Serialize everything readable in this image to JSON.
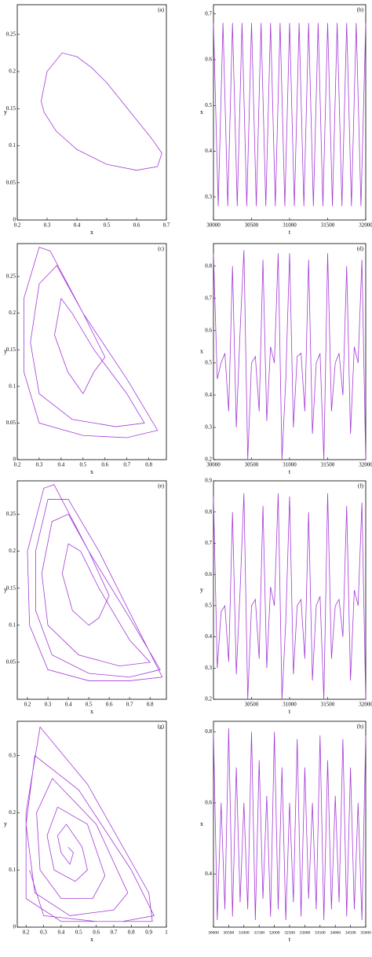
{
  "chart_data": [
    {
      "type": "line",
      "panel": "(a)",
      "xlabel": "x",
      "ylabel": "y",
      "xlim": [
        0.2,
        0.7
      ],
      "xticks": [
        0.2,
        0.3,
        0.4,
        0.5,
        0.6,
        0.7
      ],
      "ylim": [
        0,
        0.29
      ],
      "yticks": [
        0,
        0.05,
        0.1,
        0.15,
        0.2,
        0.25
      ],
      "x": [
        0.28,
        0.3,
        0.35,
        0.4,
        0.45,
        0.5,
        0.55,
        0.6,
        0.65,
        0.685,
        0.67,
        0.6,
        0.5,
        0.4,
        0.33,
        0.29,
        0.28
      ],
      "series": [
        {
          "color": "#a43ad6",
          "values": [
            0.16,
            0.2,
            0.225,
            0.22,
            0.205,
            0.185,
            0.16,
            0.135,
            0.11,
            0.09,
            0.072,
            0.067,
            0.075,
            0.095,
            0.12,
            0.145,
            0.16
          ]
        }
      ]
    },
    {
      "type": "line",
      "panel": "(b)",
      "xlabel": "t",
      "ylabel": "x",
      "xlim": [
        30000,
        32000
      ],
      "xticks": [
        30000,
        30500,
        31000,
        31500,
        32000
      ],
      "ylim": [
        0.25,
        0.72
      ],
      "yticks": [
        0.3,
        0.4,
        0.5,
        0.6,
        0.7
      ],
      "x": [
        30000,
        30062.5,
        30125,
        30187.5,
        30250,
        30312.5,
        30375,
        30437.5,
        30500,
        30562.5,
        30625,
        30687.5,
        30750,
        30812.5,
        30875,
        30937.5,
        31000,
        31062.5,
        31125,
        31187.5,
        31250,
        31312.5,
        31375,
        31437.5,
        31500,
        31562.5,
        31625,
        31687.5,
        31750,
        31812.5,
        31875,
        31937.5,
        32000
      ],
      "series": [
        {
          "color": "#a43ad6",
          "values": [
            0.68,
            0.28,
            0.68,
            0.28,
            0.68,
            0.28,
            0.68,
            0.28,
            0.68,
            0.28,
            0.68,
            0.28,
            0.68,
            0.28,
            0.68,
            0.28,
            0.68,
            0.28,
            0.68,
            0.28,
            0.68,
            0.28,
            0.68,
            0.28,
            0.68,
            0.28,
            0.68,
            0.28,
            0.68,
            0.28,
            0.68,
            0.28,
            0.68
          ]
        }
      ]
    },
    {
      "type": "line",
      "panel": "(c)",
      "xlabel": "x",
      "ylabel": "y",
      "xlim": [
        0.2,
        0.88
      ],
      "xticks": [
        0.2,
        0.3,
        0.4,
        0.5,
        0.6,
        0.7,
        0.8
      ],
      "ylim": [
        0,
        0.295
      ],
      "yticks": [
        0,
        0.05,
        0.1,
        0.15,
        0.2,
        0.25
      ],
      "x": [
        0.5,
        0.43,
        0.37,
        0.4,
        0.45,
        0.55,
        0.7,
        0.78,
        0.65,
        0.45,
        0.3,
        0.26,
        0.3,
        0.38,
        0.5,
        0.7,
        0.84,
        0.7,
        0.5,
        0.3,
        0.23,
        0.23,
        0.3,
        0.35,
        0.5,
        0.6,
        0.55,
        0.5
      ],
      "series": [
        {
          "color": "#a43ad6",
          "values": [
            0.09,
            0.12,
            0.17,
            0.22,
            0.2,
            0.15,
            0.09,
            0.05,
            0.045,
            0.055,
            0.09,
            0.16,
            0.24,
            0.265,
            0.2,
            0.11,
            0.04,
            0.03,
            0.033,
            0.05,
            0.12,
            0.22,
            0.29,
            0.285,
            0.2,
            0.14,
            0.12,
            0.09
          ]
        }
      ]
    },
    {
      "type": "line",
      "panel": "(d)",
      "xlabel": "t",
      "ylabel": "x",
      "xlim": [
        30000,
        32000
      ],
      "xticks": [
        30000,
        30500,
        31000,
        31500,
        32000
      ],
      "ylim": [
        0.2,
        0.87
      ],
      "yticks": [
        0.2,
        0.3,
        0.4,
        0.5,
        0.6,
        0.7,
        0.8
      ],
      "x": [
        30000,
        30050,
        30100,
        30150,
        30200,
        30250,
        30300,
        30350,
        30400,
        30450,
        30500,
        30550,
        30600,
        30650,
        30700,
        30750,
        30800,
        30850,
        30900,
        30950,
        31000,
        31050,
        31100,
        31150,
        31200,
        31250,
        31300,
        31350,
        31400,
        31450,
        31500,
        31550,
        31600,
        31650,
        31700,
        31750,
        31800,
        31850,
        31900,
        31950,
        32000
      ],
      "series": [
        {
          "color": "#a43ad6",
          "values": [
            0.84,
            0.45,
            0.5,
            0.53,
            0.35,
            0.8,
            0.3,
            0.6,
            0.85,
            0.2,
            0.5,
            0.52,
            0.35,
            0.82,
            0.32,
            0.55,
            0.5,
            0.84,
            0.2,
            0.45,
            0.84,
            0.3,
            0.52,
            0.53,
            0.35,
            0.82,
            0.28,
            0.5,
            0.53,
            0.2,
            0.84,
            0.35,
            0.5,
            0.53,
            0.4,
            0.8,
            0.28,
            0.55,
            0.5,
            0.82,
            0.2
          ]
        }
      ]
    },
    {
      "type": "line",
      "panel": "(e)",
      "xlabel": "x",
      "ylabel": "y",
      "xlim": [
        0.15,
        0.88
      ],
      "xticks": [
        0.2,
        0.3,
        0.4,
        0.5,
        0.6,
        0.7,
        0.8
      ],
      "ylim": [
        0,
        0.295
      ],
      "yticks": [
        0.05,
        0.1,
        0.15,
        0.2,
        0.25
      ],
      "x": [
        0.5,
        0.42,
        0.37,
        0.4,
        0.46,
        0.55,
        0.7,
        0.8,
        0.65,
        0.45,
        0.3,
        0.27,
        0.32,
        0.4,
        0.5,
        0.7,
        0.85,
        0.7,
        0.5,
        0.32,
        0.24,
        0.24,
        0.3,
        0.4,
        0.55,
        0.75,
        0.86,
        0.7,
        0.5,
        0.3,
        0.21,
        0.2,
        0.28,
        0.33,
        0.5,
        0.6,
        0.55,
        0.5
      ],
      "series": [
        {
          "color": "#a43ad6",
          "values": [
            0.1,
            0.12,
            0.17,
            0.21,
            0.2,
            0.15,
            0.08,
            0.05,
            0.045,
            0.06,
            0.1,
            0.17,
            0.24,
            0.25,
            0.2,
            0.11,
            0.04,
            0.03,
            0.035,
            0.06,
            0.12,
            0.2,
            0.27,
            0.27,
            0.2,
            0.09,
            0.03,
            0.025,
            0.025,
            0.04,
            0.1,
            0.2,
            0.285,
            0.29,
            0.2,
            0.14,
            0.11,
            0.1
          ]
        }
      ]
    },
    {
      "type": "line",
      "panel": "(f)",
      "xlabel": "t",
      "ylabel": "y",
      "xlim": [
        30000,
        32000
      ],
      "xticks": [
        30500,
        31000,
        31500,
        32000
      ],
      "ylim": [
        0.2,
        0.9
      ],
      "yticks": [
        0.2,
        0.3,
        0.4,
        0.5,
        0.6,
        0.7,
        0.8,
        0.9
      ],
      "x": [
        30000,
        30050,
        30100,
        30150,
        30200,
        30250,
        30300,
        30350,
        30400,
        30450,
        30500,
        30550,
        30600,
        30650,
        30700,
        30750,
        30800,
        30850,
        30900,
        30950,
        31000,
        31050,
        31100,
        31150,
        31200,
        31250,
        31300,
        31350,
        31400,
        31450,
        31500,
        31550,
        31600,
        31650,
        31700,
        31750,
        31800,
        31850,
        31900,
        31950,
        32000
      ],
      "series": [
        {
          "color": "#a43ad6",
          "values": [
            0.85,
            0.3,
            0.48,
            0.5,
            0.32,
            0.8,
            0.28,
            0.55,
            0.86,
            0.2,
            0.5,
            0.52,
            0.33,
            0.82,
            0.3,
            0.56,
            0.5,
            0.86,
            0.2,
            0.45,
            0.85,
            0.28,
            0.5,
            0.52,
            0.33,
            0.8,
            0.26,
            0.5,
            0.53,
            0.2,
            0.86,
            0.33,
            0.5,
            0.52,
            0.4,
            0.82,
            0.26,
            0.55,
            0.5,
            0.83,
            0.2
          ]
        }
      ]
    },
    {
      "type": "line",
      "panel": "(g)",
      "xlabel": "x",
      "ylabel": "y",
      "xlim": [
        0.15,
        1
      ],
      "xticks": [
        0.2,
        0.3,
        0.4,
        0.5,
        0.6,
        0.7,
        0.8,
        0.9,
        1
      ],
      "ylim": [
        0,
        0.36
      ],
      "yticks": [
        0,
        0.1,
        0.2,
        0.3
      ],
      "x": [
        0.44,
        0.47,
        0.45,
        0.4,
        0.38,
        0.43,
        0.52,
        0.55,
        0.48,
        0.36,
        0.32,
        0.38,
        0.55,
        0.65,
        0.58,
        0.4,
        0.28,
        0.26,
        0.35,
        0.6,
        0.78,
        0.7,
        0.45,
        0.25,
        0.2,
        0.25,
        0.5,
        0.8,
        0.93,
        0.75,
        0.4,
        0.2,
        0.2,
        0.28,
        0.55,
        0.9,
        0.92,
        0.6,
        0.3,
        0.22
      ],
      "series": [
        {
          "color": "#a43ad6",
          "values": [
            0.14,
            0.13,
            0.11,
            0.13,
            0.16,
            0.18,
            0.14,
            0.1,
            0.08,
            0.1,
            0.16,
            0.21,
            0.18,
            0.09,
            0.05,
            0.05,
            0.1,
            0.2,
            0.26,
            0.18,
            0.06,
            0.03,
            0.02,
            0.06,
            0.18,
            0.3,
            0.24,
            0.1,
            0.02,
            0.01,
            0.01,
            0.05,
            0.2,
            0.35,
            0.25,
            0.06,
            0.01,
            0.01,
            0.02,
            0.1
          ]
        }
      ]
    },
    {
      "type": "line",
      "panel": "(h)",
      "xlabel": "t",
      "ylabel": "x",
      "xlim": [
        30000,
        35000
      ],
      "xticks": [
        30000,
        30500,
        31000,
        31500,
        32000,
        32500,
        33000,
        33500,
        34000,
        34500,
        35000
      ],
      "ylim": [
        0.25,
        0.83
      ],
      "yticks": [
        0.4,
        0.6,
        0.8
      ],
      "x": [
        30000,
        30125,
        30250,
        30375,
        30500,
        30625,
        30750,
        30875,
        31000,
        31125,
        31250,
        31375,
        31500,
        31625,
        31750,
        31875,
        32000,
        32125,
        32250,
        32375,
        32500,
        32625,
        32750,
        32875,
        33000,
        33125,
        33250,
        33375,
        33500,
        33625,
        33750,
        33875,
        34000,
        34125,
        34250,
        34375,
        34500,
        34625,
        34750,
        34875,
        35000
      ],
      "series": [
        {
          "color": "#a43ad6",
          "values": [
            0.8,
            0.27,
            0.6,
            0.3,
            0.81,
            0.28,
            0.7,
            0.32,
            0.6,
            0.3,
            0.8,
            0.27,
            0.72,
            0.33,
            0.62,
            0.28,
            0.8,
            0.3,
            0.7,
            0.27,
            0.6,
            0.32,
            0.78,
            0.28,
            0.7,
            0.33,
            0.6,
            0.3,
            0.79,
            0.27,
            0.72,
            0.3,
            0.62,
            0.32,
            0.78,
            0.28,
            0.7,
            0.3,
            0.6,
            0.27,
            0.79
          ]
        }
      ]
    }
  ]
}
